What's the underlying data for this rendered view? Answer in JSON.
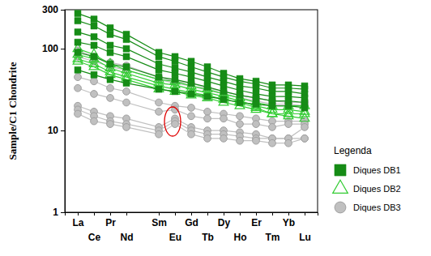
{
  "chart_data": {
    "type": "line",
    "y_label": "Sample/C1 Chondrite",
    "legend_title": "Legenda",
    "legend": "right",
    "log": "y",
    "x": [
      57,
      58,
      59,
      60,
      62,
      63,
      64,
      65,
      66,
      67,
      68,
      69,
      70,
      71
    ],
    "xlim": [
      56.2,
      71.8
    ],
    "xticks": [
      {
        "value": 57,
        "label": "La"
      },
      {
        "value": 58,
        "label": "Ce"
      },
      {
        "value": 59,
        "label": "Pr"
      },
      {
        "value": 60,
        "label": "Nd"
      },
      {
        "value": 62,
        "label": "Sm"
      },
      {
        "value": 63,
        "label": "Eu"
      },
      {
        "value": 64,
        "label": "Gd"
      },
      {
        "value": 65,
        "label": "Tb"
      },
      {
        "value": 66,
        "label": "Dy"
      },
      {
        "value": 67,
        "label": "Ho"
      },
      {
        "value": 68,
        "label": "Er"
      },
      {
        "value": 69,
        "label": "Tm"
      },
      {
        "value": 70,
        "label": "Yb"
      },
      {
        "value": 71,
        "label": "Lu"
      }
    ],
    "ylim": [
      1,
      300
    ],
    "yticks": [
      1,
      10,
      100,
      300
    ],
    "series": [
      {
        "name": "Diques DB1",
        "color": "#168c16",
        "marker": "square",
        "line_style": "solid",
        "values": [
          [
            270,
            230,
            180,
            150,
            90,
            80,
            70,
            60,
            50,
            43,
            40,
            36,
            36,
            35
          ],
          [
            220,
            190,
            150,
            130,
            80,
            70,
            60,
            52,
            45,
            40,
            37,
            33,
            33,
            32
          ],
          [
            160,
            140,
            110,
            100,
            65,
            58,
            52,
            45,
            40,
            35,
            33,
            30,
            30,
            28
          ],
          [
            120,
            110,
            90,
            80,
            55,
            50,
            45,
            40,
            35,
            31,
            28,
            26,
            26,
            25
          ],
          [
            90,
            80,
            65,
            60,
            45,
            42,
            38,
            34,
            30,
            27,
            25,
            23,
            23,
            22
          ],
          [
            55,
            48,
            42,
            38,
            32,
            30,
            28,
            26,
            24,
            22,
            21,
            20,
            20,
            19
          ]
        ]
      },
      {
        "name": "Diques DB2",
        "color": "#33cc33",
        "marker": "triangle",
        "line_style": "solid",
        "values": [
          [
            100,
            85,
            65,
            55,
            42,
            40,
            35,
            32,
            28,
            25,
            22,
            20,
            20,
            20
          ],
          [
            85,
            75,
            58,
            50,
            38,
            36,
            32,
            29,
            26,
            23,
            20,
            18,
            18,
            17
          ],
          [
            75,
            65,
            52,
            45,
            35,
            32,
            29,
            27,
            24,
            22,
            19,
            16,
            15,
            14
          ],
          [
            70,
            60,
            48,
            42,
            32,
            30,
            27,
            25,
            22,
            20,
            18,
            16,
            16,
            16
          ]
        ]
      },
      {
        "name": "Diques DB3",
        "color": "#c0c0c0",
        "marker": "circle",
        "line_style": "solid",
        "values": [
          [
            95,
            80,
            68,
            62,
            45,
            40,
            38,
            33,
            30,
            27,
            25,
            23,
            22,
            22
          ],
          [
            80,
            70,
            60,
            55,
            42,
            38,
            35,
            31,
            28,
            25,
            23,
            21,
            21,
            20
          ],
          [
            45,
            40,
            33,
            30,
            22,
            20,
            19,
            17,
            16,
            15,
            14,
            13,
            13,
            13
          ],
          [
            33,
            28,
            25,
            22,
            17,
            18,
            15,
            14,
            14,
            12,
            12,
            11,
            12,
            12
          ],
          [
            20,
            17,
            15,
            14,
            11,
            14,
            11,
            10,
            10,
            9.5,
            9,
            8,
            8,
            11
          ],
          [
            18,
            15,
            13,
            12,
            10,
            13,
            10,
            9,
            9,
            8.5,
            8,
            8,
            8,
            8
          ],
          [
            16,
            13,
            12,
            11,
            9,
            12,
            9,
            8,
            8,
            7.5,
            7.5,
            7,
            7,
            8
          ]
        ]
      }
    ]
  }
}
